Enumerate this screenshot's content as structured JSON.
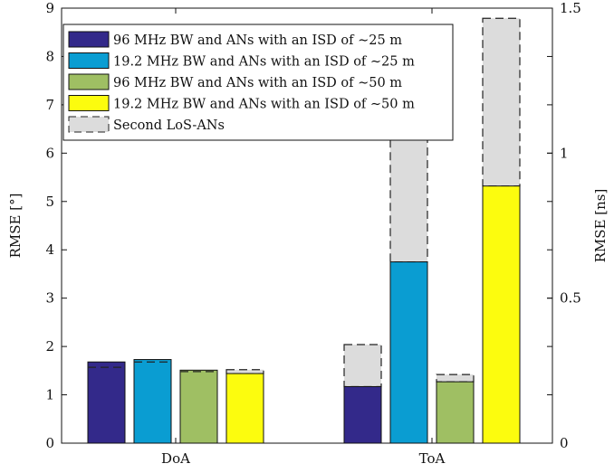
{
  "chart_data": {
    "type": "bar",
    "categories": [
      "DoA",
      "ToA"
    ],
    "left_axis": {
      "label": "RMSE [°]",
      "ylim": [
        0,
        9
      ],
      "ticks": [
        "0",
        "1",
        "2",
        "3",
        "4",
        "5",
        "6",
        "7",
        "8",
        "9"
      ]
    },
    "right_axis": {
      "label": "RMSE [ns]",
      "ylim": [
        0,
        1.5
      ],
      "ticks": [
        "0",
        "0.5",
        "1",
        "1.5"
      ]
    },
    "series": [
      {
        "name": "96 MHz BW and ANs with an ISD of ∼25 m",
        "color": "#33298a",
        "values": [
          1.68,
          1.17
        ],
        "second_los": [
          1.57,
          2.04
        ]
      },
      {
        "name": "19.2 MHz BW and ANs with an ISD of ∼25 m",
        "color": "#0a9dd2",
        "values": [
          1.73,
          3.75
        ],
        "second_los": [
          1.68,
          6.4
        ]
      },
      {
        "name": "96 MHz BW and ANs with an ISD of ∼50 m",
        "color": "#9fbf63",
        "values": [
          1.51,
          1.27
        ],
        "second_los": [
          1.48,
          1.42
        ]
      },
      {
        "name": "19.2 MHz BW and ANs with an ISD of ∼50 m",
        "color": "#fcfc0e",
        "values": [
          1.44,
          5.32
        ],
        "second_los": [
          1.52,
          8.79
        ]
      }
    ],
    "second_los_label": "Second LoS-ANs",
    "second_los_color": "#dcdcdc",
    "legend_position": "top-left",
    "grid": false
  }
}
